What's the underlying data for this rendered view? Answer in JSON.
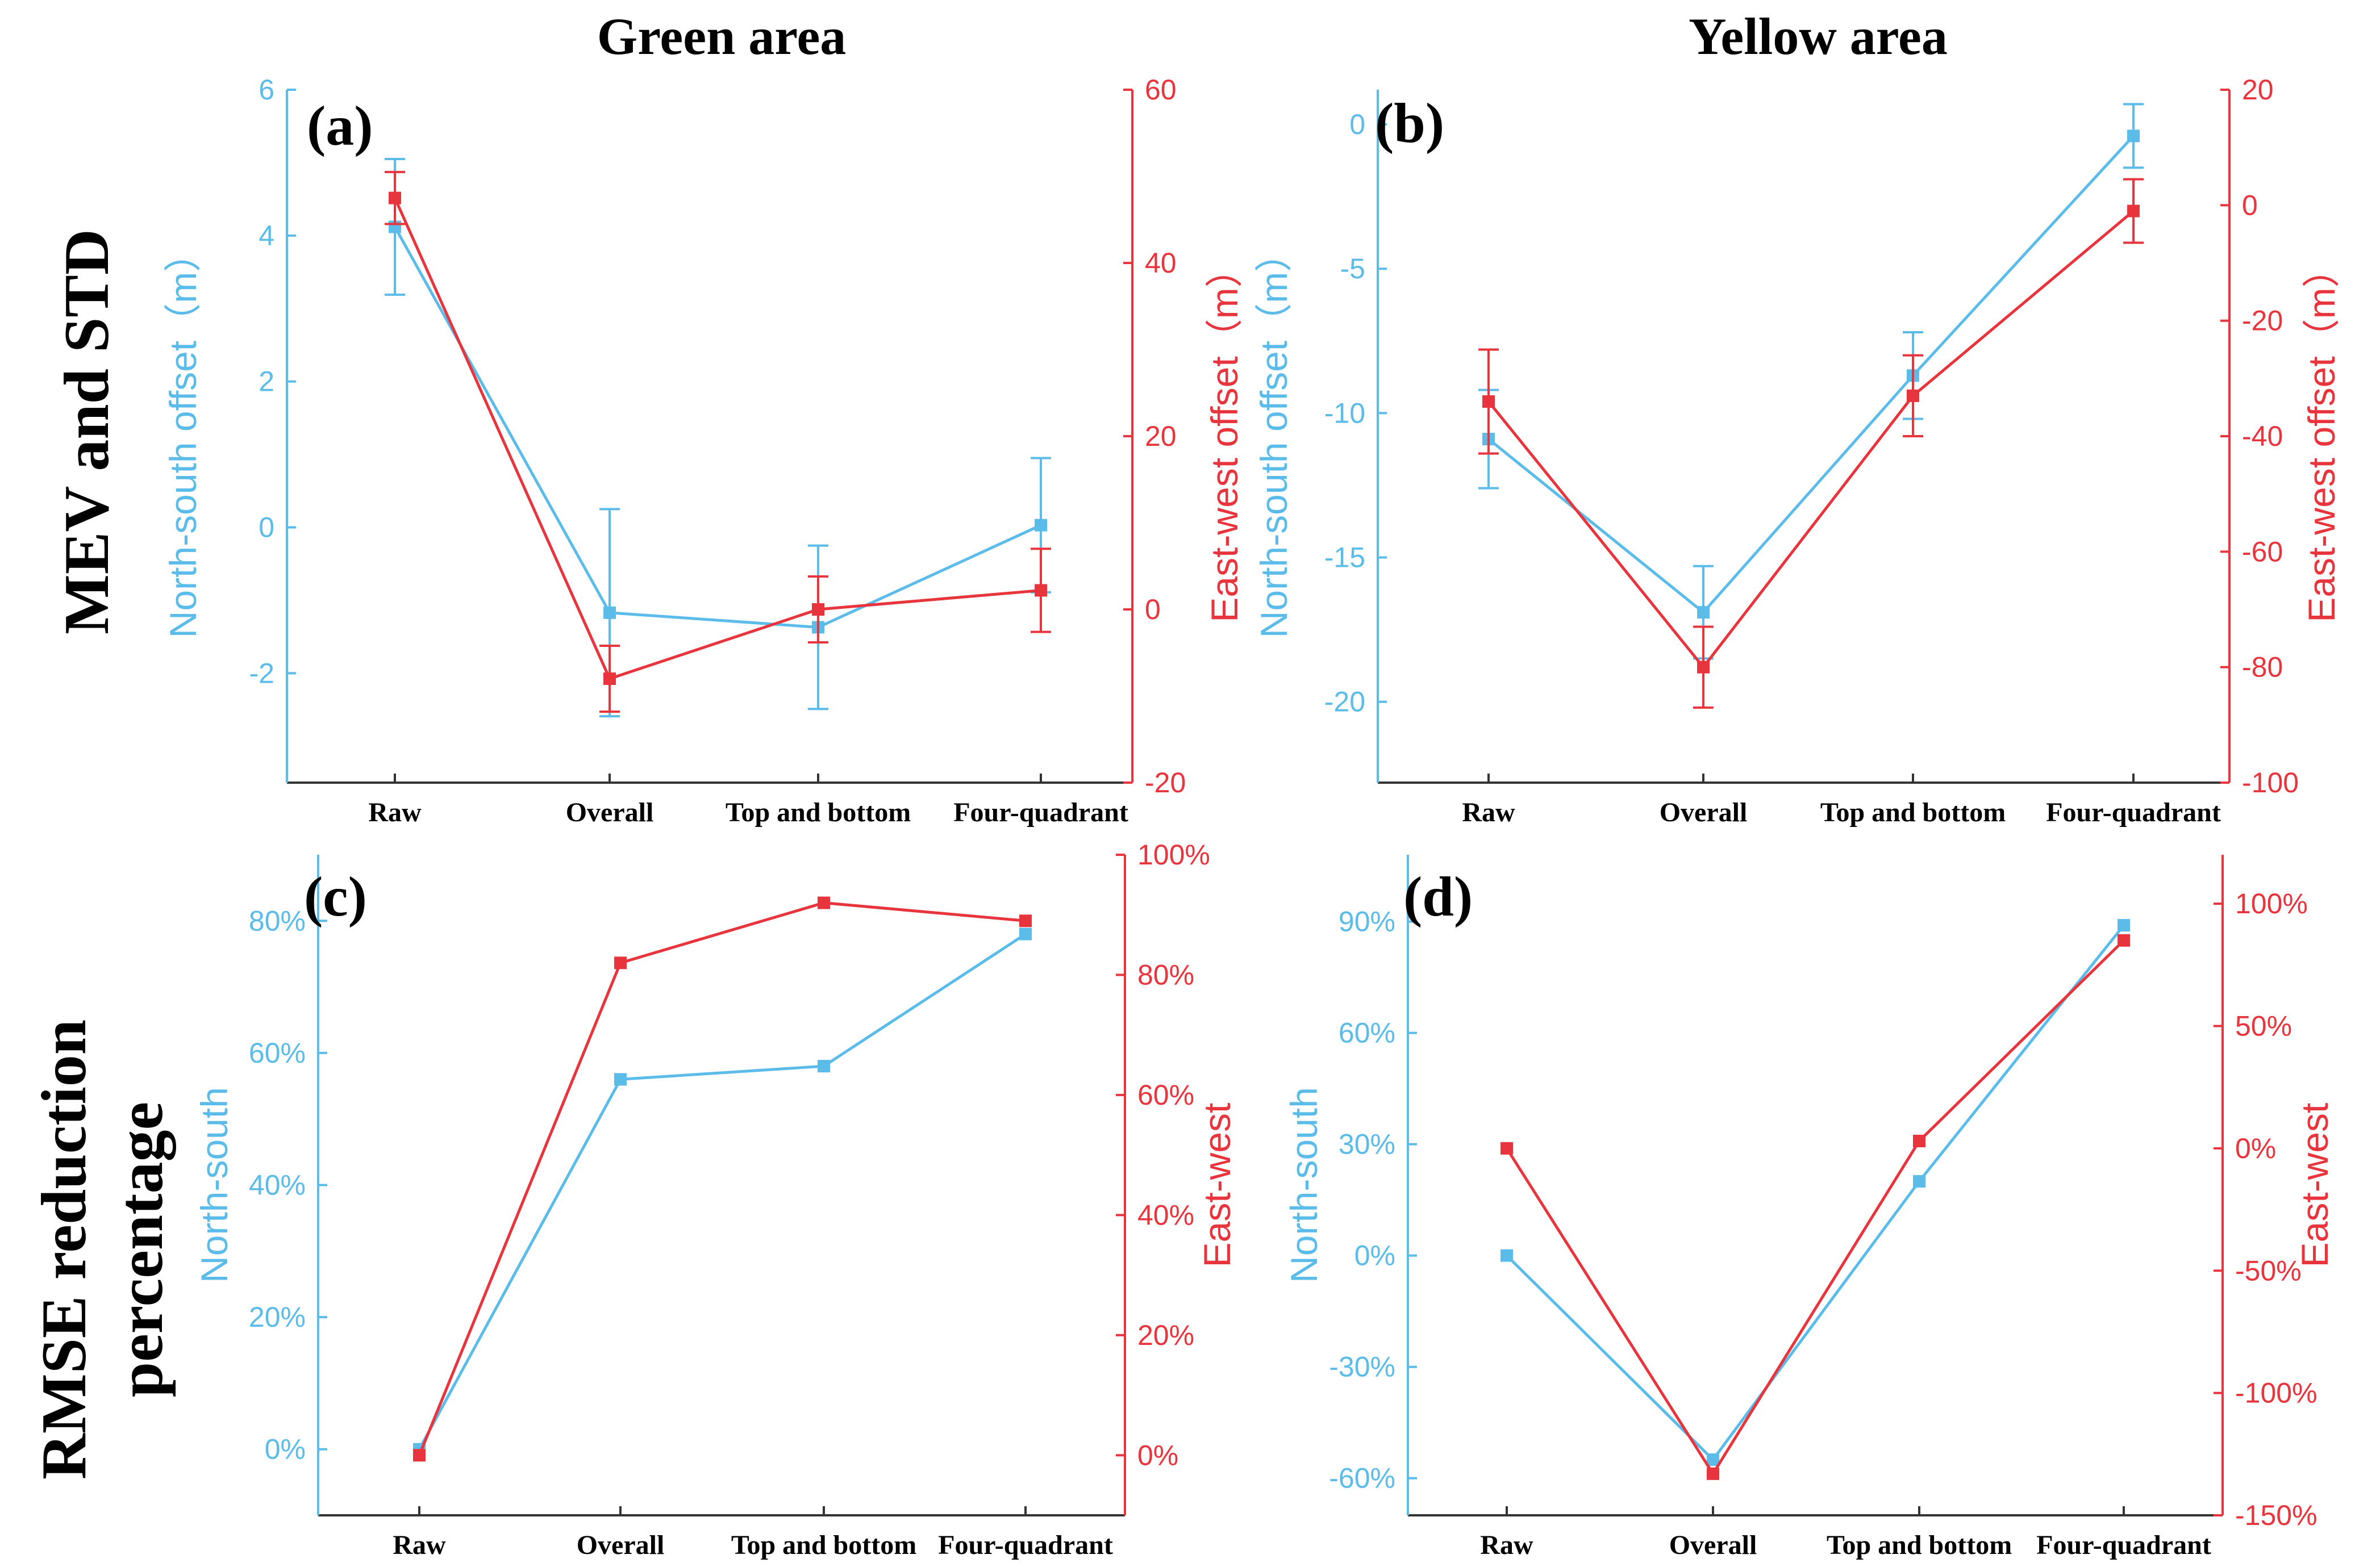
{
  "titles": {
    "col_left": "Green area",
    "col_right": "Yellow area",
    "row_top": "MEV and STD",
    "row_bottom_line1": "RMSE reduction",
    "row_bottom_line2": "percentage"
  },
  "colors": {
    "ns": "#5BBCEA",
    "ew": "#E8343C",
    "axis": "#333333"
  },
  "chart_data": [
    {
      "id": "a",
      "label": "(a)",
      "type": "line",
      "categories": [
        "Raw",
        "Overall",
        "Top and bottom",
        "Four-quadrant"
      ],
      "left_axis": {
        "label": "North-south offset（m）",
        "ylim": [
          -3.5,
          6
        ],
        "ticks": [
          -2,
          0,
          2,
          4,
          6
        ],
        "tick_labels": [
          "-2",
          "0",
          "2",
          "4",
          "6"
        ]
      },
      "right_axis": {
        "label": "East-west offset（m）",
        "ylim": [
          -20,
          60
        ],
        "ticks": [
          -20,
          0,
          20,
          40,
          60
        ],
        "tick_labels": [
          "-20",
          "0",
          "20",
          "40",
          "60"
        ]
      },
      "series": [
        {
          "name": "North-south",
          "axis": "left",
          "color": "#5BBCEA",
          "values": [
            4.12,
            -1.17,
            -1.37,
            0.03
          ],
          "err": [
            0.93,
            1.42,
            1.12,
            0.92
          ]
        },
        {
          "name": "East-west",
          "axis": "right",
          "color": "#E8343C",
          "values": [
            47.5,
            -8.0,
            0.0,
            2.2
          ],
          "err": [
            3.0,
            3.8,
            3.8,
            4.8
          ]
        }
      ]
    },
    {
      "id": "b",
      "label": "(b)",
      "type": "line",
      "categories": [
        "Raw",
        "Overall",
        "Top and bottom",
        "Four-quadrant"
      ],
      "left_axis": {
        "label": "North-south offset（m）",
        "ylim": [
          -22.8,
          1.2
        ],
        "ticks": [
          -20,
          -15,
          -10,
          -5,
          0
        ],
        "tick_labels": [
          "-20",
          "-15",
          "-10",
          "-5",
          "0"
        ]
      },
      "right_axis": {
        "label": "East-west offset（m）",
        "ylim": [
          -100,
          20
        ],
        "ticks": [
          -100,
          -80,
          -60,
          -40,
          -20,
          0,
          20
        ],
        "tick_labels": [
          "-100",
          "-80",
          "-60",
          "-40",
          "-20",
          "0",
          "20"
        ]
      },
      "series": [
        {
          "name": "North-south",
          "axis": "left",
          "color": "#5BBCEA",
          "values": [
            -10.9,
            -16.9,
            -8.7,
            -0.4
          ],
          "err": [
            1.7,
            1.6,
            1.5,
            1.1
          ]
        },
        {
          "name": "East-west",
          "axis": "right",
          "color": "#E8343C",
          "values": [
            -34.0,
            -80.0,
            -33.0,
            -1.0
          ],
          "err": [
            9.0,
            7.0,
            7.0,
            5.5
          ]
        }
      ]
    },
    {
      "id": "c",
      "label": "(c)",
      "type": "line",
      "categories": [
        "Raw",
        "Overall",
        "Top and bottom",
        "Four-quadrant"
      ],
      "left_axis": {
        "label": "North-south",
        "ylim": [
          -10,
          90
        ],
        "ticks": [
          0,
          20,
          40,
          60,
          80
        ],
        "tick_labels": [
          "0%",
          "20%",
          "40%",
          "60%",
          "80%"
        ]
      },
      "right_axis": {
        "label": "East-west",
        "ylim": [
          -10,
          100
        ],
        "ticks": [
          0,
          20,
          40,
          60,
          80,
          100
        ],
        "tick_labels": [
          "0%",
          "20%",
          "40%",
          "60%",
          "80%",
          "100%"
        ]
      },
      "series": [
        {
          "name": "North-south",
          "axis": "left",
          "color": "#5BBCEA",
          "values": [
            0,
            56,
            58,
            78
          ]
        },
        {
          "name": "East-west",
          "axis": "right",
          "color": "#E8343C",
          "values": [
            0,
            82,
            92,
            89
          ]
        }
      ]
    },
    {
      "id": "d",
      "label": "(d)",
      "type": "line",
      "categories": [
        "Raw",
        "Overall",
        "Top and bottom",
        "Four-quadrant"
      ],
      "left_axis": {
        "label": "North-south",
        "ylim": [
          -70,
          108
        ],
        "ticks": [
          -60,
          -30,
          0,
          30,
          60,
          90
        ],
        "tick_labels": [
          "-60%",
          "-30%",
          "0%",
          "30%",
          "60%",
          "90%"
        ]
      },
      "right_axis": {
        "label": "East-west",
        "ylim": [
          -150,
          120
        ],
        "ticks": [
          -150,
          -100,
          -50,
          0,
          50,
          100
        ],
        "tick_labels": [
          "-150%",
          "-100%",
          "-50%",
          "0%",
          "50%",
          "100%"
        ]
      },
      "series": [
        {
          "name": "North-south",
          "axis": "left",
          "color": "#5BBCEA",
          "values": [
            0,
            -55,
            20,
            89
          ]
        },
        {
          "name": "East-west",
          "axis": "right",
          "color": "#E8343C",
          "values": [
            0,
            -133,
            3,
            85
          ]
        }
      ]
    }
  ]
}
